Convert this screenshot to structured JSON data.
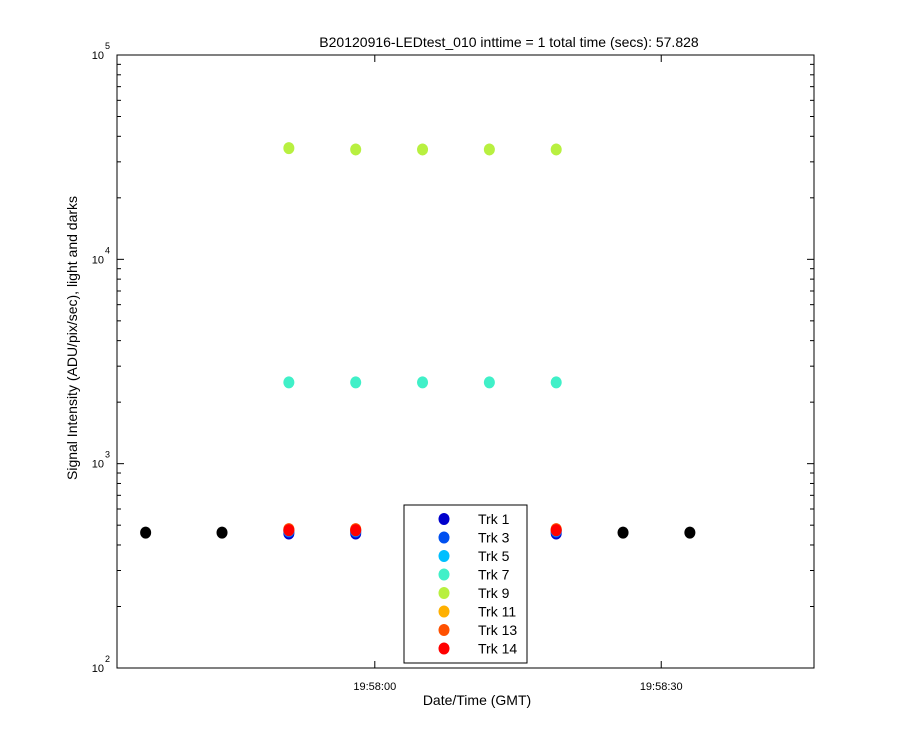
{
  "chart_data": {
    "type": "scatter",
    "title": "B20120916-LEDtest_010 inttime = 1 total time (secs): 57.828",
    "xlabel": "Date/Time (GMT)",
    "ylabel": "Signal Intensity (ADU/pix/sec), light and darks",
    "y_scale": "log",
    "ylim": [
      100,
      100000
    ],
    "xlim": [
      "19:57:33",
      "19:58:46"
    ],
    "x_ticks": [
      "19:58:00",
      "19:58:30"
    ],
    "y_ticks": [
      {
        "base": "10",
        "exp": "2"
      },
      {
        "base": "10",
        "exp": "3"
      },
      {
        "base": "10",
        "exp": "4"
      },
      {
        "base": "10",
        "exp": "5"
      }
    ],
    "grid": false,
    "legend_position": "bottom-center",
    "series": [
      {
        "name": "Trk 1",
        "color": "#0000cc",
        "x": [
          "19:57:51",
          "19:57:58",
          "19:58:05",
          "19:58:12",
          "19:58:19"
        ],
        "y": [
          455,
          455,
          460,
          460,
          455
        ]
      },
      {
        "name": "Trk 3",
        "color": "#0050f0",
        "x": [
          "19:57:51",
          "19:57:58",
          "19:58:05",
          "19:58:12",
          "19:58:19"
        ],
        "y": [
          465,
          465,
          465,
          465,
          465
        ]
      },
      {
        "name": "Trk 5",
        "color": "#00bfff",
        "x": [
          "19:57:51",
          "19:57:58",
          "19:58:05",
          "19:58:12",
          "19:58:19"
        ],
        "y": [
          470,
          470,
          470,
          470,
          470
        ]
      },
      {
        "name": "Trk 7",
        "color": "#40f0c8",
        "x": [
          "19:57:51",
          "19:57:58",
          "19:58:05",
          "19:58:12",
          "19:58:19"
        ],
        "y": [
          2500,
          2500,
          2500,
          2500,
          2500
        ]
      },
      {
        "name": "Trk 9",
        "color": "#b8f040",
        "x": [
          "19:57:51",
          "19:57:58",
          "19:58:05",
          "19:58:12",
          "19:58:19"
        ],
        "y": [
          35000,
          34500,
          34500,
          34500,
          34500
        ]
      },
      {
        "name": "Trk 11",
        "color": "#ffb000",
        "x": [
          "19:57:51",
          "19:57:58",
          "19:58:05",
          "19:58:12",
          "19:58:19"
        ],
        "y": [
          475,
          475,
          475,
          475,
          475
        ]
      },
      {
        "name": "Trk 13",
        "color": "#ff5000",
        "x": [
          "19:57:51",
          "19:57:58",
          "19:58:05",
          "19:58:12",
          "19:58:19"
        ],
        "y": [
          478,
          478,
          478,
          478,
          478
        ]
      },
      {
        "name": "Trk 14",
        "color": "#ff0000",
        "x": [
          "19:57:51",
          "19:57:58",
          "19:58:05",
          "19:58:12",
          "19:58:19"
        ],
        "y": [
          472,
          472,
          472,
          472,
          472
        ]
      },
      {
        "color": "#000000",
        "x": [
          "19:57:36",
          "19:57:44",
          "19:58:26",
          "19:58:33"
        ],
        "y": [
          460,
          460,
          460,
          460
        ]
      }
    ]
  }
}
